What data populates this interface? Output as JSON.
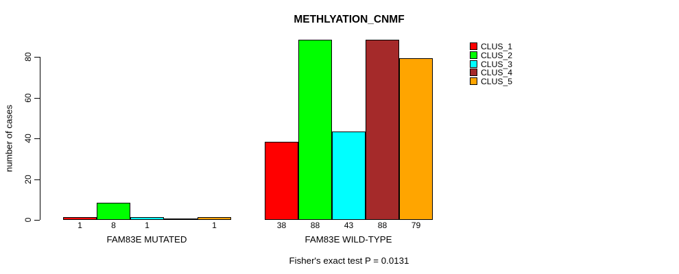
{
  "chart_data": {
    "type": "bar",
    "title": "METHLYATION_CNMF",
    "ylabel": "number of cases",
    "xlabel": "",
    "groups": [
      "FAM83E MUTATED",
      "FAM83E WILD-TYPE"
    ],
    "series": [
      {
        "name": "CLUS_1",
        "color": "#FF0000",
        "values": [
          1,
          38
        ]
      },
      {
        "name": "CLUS_2",
        "color": "#00FF00",
        "values": [
          8,
          88
        ]
      },
      {
        "name": "CLUS_3",
        "color": "#00FFFF",
        "values": [
          1,
          43
        ]
      },
      {
        "name": "CLUS_4",
        "color": "#A52A2A",
        "values": [
          0,
          88
        ]
      },
      {
        "name": "CLUS_5",
        "color": "#FFA500",
        "values": [
          1,
          79
        ]
      }
    ],
    "bar_labels": [
      [
        "1",
        "8",
        "1",
        "",
        "1"
      ],
      [
        "38",
        "88",
        "43",
        "88",
        "79"
      ]
    ],
    "y_ticks": [
      0,
      20,
      40,
      60,
      80
    ],
    "ylim": [
      0,
      88
    ],
    "grid": false,
    "legend_position": "right-of-plot",
    "footnote": "Fisher's exact test P = 0.0131",
    "colors": {
      "axis": "#000000",
      "text": "#000000",
      "background": "#FFFFFF"
    }
  }
}
